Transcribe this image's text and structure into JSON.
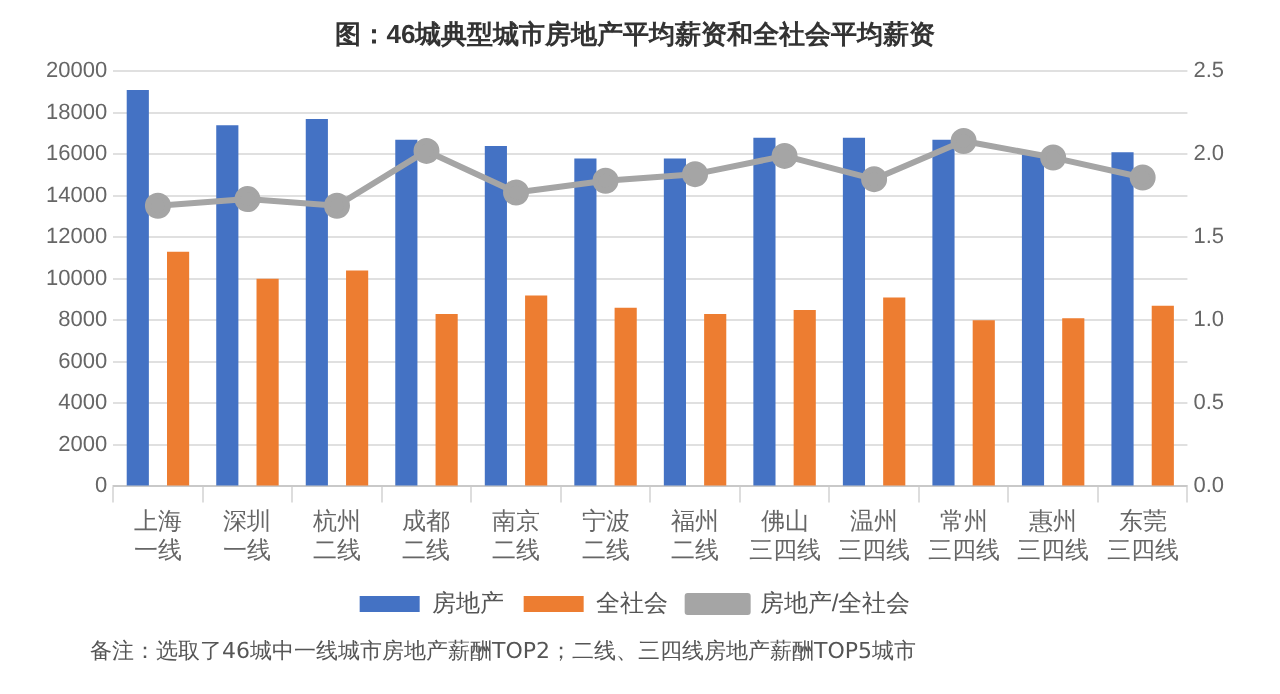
{
  "chart_data": {
    "type": "bar",
    "title": "图：46城典型城市房地产平均薪资和全社会平均薪资",
    "categories": [
      "上海一线",
      "深圳一线",
      "杭州二线",
      "成都二线",
      "南京二线",
      "宁波二线",
      "福州二线",
      "佛山三四线",
      "温州三四线",
      "常州三四线",
      "惠州三四线",
      "东莞三四线"
    ],
    "series": [
      {
        "name": "房地产",
        "color": "#4472c4",
        "values": [
          19100,
          17400,
          17700,
          16700,
          16400,
          15800,
          15800,
          16800,
          16800,
          16700,
          16000,
          16100
        ]
      },
      {
        "name": "全社会",
        "color": "#ed7d31",
        "values": [
          11300,
          10000,
          10400,
          8300,
          9200,
          8600,
          8300,
          8500,
          9100,
          8000,
          8100,
          8700
        ]
      },
      {
        "name": "房地产/全社会",
        "type": "line",
        "axis": "y2",
        "color": "#a5a5a5",
        "marker": "circle",
        "values": [
          1.69,
          1.73,
          1.69,
          2.02,
          1.77,
          1.84,
          1.88,
          1.99,
          1.85,
          2.08,
          1.98,
          1.86
        ]
      }
    ],
    "ylim": [
      0,
      20000
    ],
    "yticks": [
      0,
      2000,
      4000,
      6000,
      8000,
      10000,
      12000,
      14000,
      16000,
      18000,
      20000
    ],
    "y2lim": [
      0,
      2.5
    ],
    "y2ticks": [
      {
        "value": 0,
        "label": "0.0"
      },
      {
        "value": 0.5,
        "label": "0.5"
      },
      {
        "value": 1,
        "label": "1.0"
      },
      {
        "value": 1.5,
        "label": "1.5"
      },
      {
        "value": 2,
        "label": "2.0"
      },
      {
        "value": 2.5,
        "label": "2.5"
      }
    ],
    "grid": "y",
    "legend": "bottom",
    "annotations": [
      "备注：选取了46城中一线城市房地产薪酬TOP2；二线、三四线房地产薪酬TOP5城市"
    ]
  }
}
